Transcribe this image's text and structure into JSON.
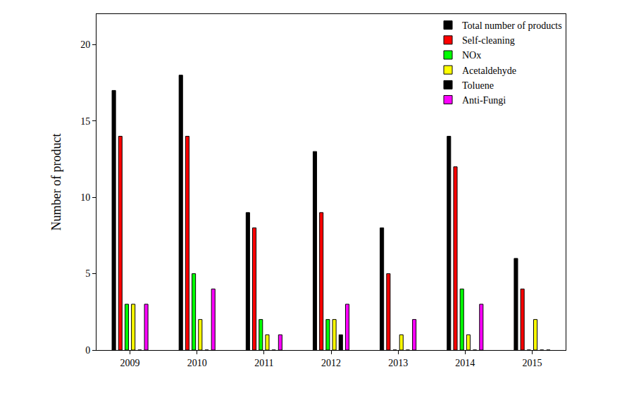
{
  "chart_data": {
    "type": "bar",
    "categories": [
      "2009",
      "2010",
      "2011",
      "2012",
      "2013",
      "2014",
      "2015"
    ],
    "series": [
      {
        "name": "Total number of products",
        "color": "#000000",
        "values": [
          17,
          18,
          9,
          13,
          8,
          14,
          6
        ]
      },
      {
        "name": "Self-cleaning",
        "color": "#ff0000",
        "values": [
          14,
          14,
          8,
          9,
          5,
          12,
          4
        ]
      },
      {
        "name": "NOx",
        "color": "#00ff00",
        "values": [
          3,
          5,
          2,
          2,
          0,
          4,
          0
        ]
      },
      {
        "name": "Acetaldehyde",
        "color": "#ffff00",
        "values": [
          3,
          2,
          1,
          2,
          1,
          1,
          2
        ]
      },
      {
        "name": "Toluene",
        "color": "#000000",
        "values": [
          0,
          0,
          0,
          1,
          0,
          0,
          0
        ]
      },
      {
        "name": "Anti-Fungi",
        "color": "#ff00ff",
        "values": [
          3,
          4,
          1,
          3,
          2,
          3,
          0
        ]
      }
    ],
    "y_label": "Number of product",
    "ylim": [
      0,
      22
    ],
    "yticks": [
      0,
      5,
      10,
      15,
      20
    ],
    "grid": false,
    "legend": "upper right"
  }
}
